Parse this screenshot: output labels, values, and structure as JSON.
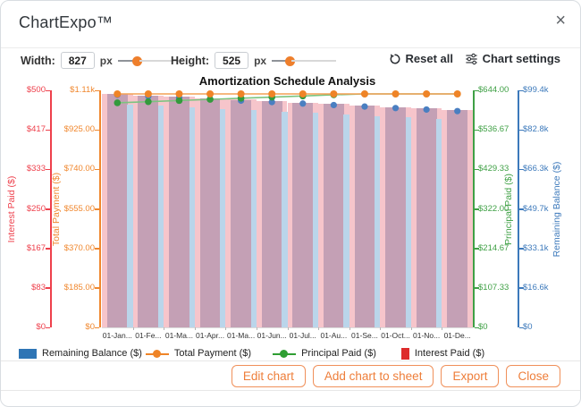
{
  "header": {
    "title": "ChartExpo™",
    "close_label": "×"
  },
  "controls": {
    "width": {
      "label": "Width:",
      "value": "827",
      "unit": "px",
      "slider_pos_pct": 30
    },
    "height": {
      "label": "Height:",
      "value": "525",
      "unit": "px",
      "slider_pos_pct": 27
    },
    "reset_label": "Reset all",
    "chart_settings_label": "Chart settings"
  },
  "chart_data": {
    "type": "bar",
    "title": "Amortization Schedule Analysis",
    "categories": [
      "01-Jan...",
      "01-Fe...",
      "01-Ma...",
      "01-Apr...",
      "01-Ma...",
      "01-Jun...",
      "01-Jul...",
      "01-Au...",
      "01-Se...",
      "01-Oct...",
      "01-No...",
      "01-De..."
    ],
    "series": [
      {
        "name": "Remaining Balance ($)",
        "type": "bar",
        "color": "#3e7bb6",
        "axis_max": 99400,
        "values": [
          99389.79,
          98776.53,
          98160.2,
          97540.79,
          96918.28,
          96292.66,
          95663.91,
          95032.02,
          94396.97,
          93758.74,
          93117.32,
          92472.69
        ]
      },
      {
        "name": "Total Payment ($)",
        "type": "line",
        "color": "#ef8427",
        "axis_max": 1110,
        "values": [
          1110.21,
          1110.21,
          1110.21,
          1110.21,
          1110.21,
          1110.21,
          1110.21,
          1110.21,
          1110.21,
          1110.21,
          1110.21,
          1110.21
        ]
      },
      {
        "name": "Principal Paid ($)",
        "type": "line",
        "color": "#339a3c",
        "axis_max": 644,
        "values": [
          610.21,
          613.26,
          616.33,
          619.41,
          622.51,
          625.62,
          628.75,
          631.89,
          635.05,
          638.23,
          641.42,
          644.63
        ]
      },
      {
        "name": "Interest Paid ($)",
        "type": "bar",
        "color": "#e04343",
        "axis_max": 500,
        "values": [
          500.0,
          496.95,
          493.88,
          490.8,
          487.7,
          484.59,
          481.46,
          478.32,
          475.16,
          471.98,
          468.79,
          465.58
        ]
      }
    ],
    "axes": {
      "interest": {
        "title": "Interest Paid ($)",
        "color": "#ee404c",
        "ticks": [
          "$500",
          "$417",
          "$333",
          "$250",
          "$167",
          "$83",
          "$0"
        ]
      },
      "total_payment": {
        "title": "Total Payment ($)",
        "color": "#f0872e",
        "ticks": [
          "$1.11k",
          "$925.00",
          "$740.00",
          "$555.00",
          "$370.00",
          "$185.00",
          "$0"
        ]
      },
      "principal": {
        "title": "Principal Paid ($)",
        "color": "#3fa045",
        "ticks": [
          "$644.00",
          "$536.67",
          "$429.33",
          "$322.00",
          "$214.67",
          "$107.33",
          "$0"
        ]
      },
      "balance": {
        "title": "Remaining Balance ($)",
        "color": "#3c79bb",
        "ticks": [
          "$99.4k",
          "$82.8k",
          "$66.3k",
          "$49.7k",
          "$33.1k",
          "$16.6k",
          "$0"
        ]
      }
    },
    "legend": [
      {
        "label": "Remaining Balance ($)",
        "marker": "rect",
        "color": "#2e75b5"
      },
      {
        "label": "Total Payment ($)",
        "marker": "line-dot",
        "color": "#ef8427"
      },
      {
        "label": "Principal Paid ($)",
        "marker": "line-dot",
        "color": "#2f9e33"
      },
      {
        "label": "Interest Paid ($)",
        "marker": "rect-v",
        "color": "#dd2b2b"
      }
    ],
    "bar_colors": {
      "interest_fill": "#f6c5cb",
      "overlap_fill": "#c4a0b5",
      "balance_fill": "#bad5ea"
    },
    "ylim_left": [
      0,
      500
    ],
    "ylim_right": [
      0,
      99400
    ],
    "grid": false,
    "legend_position": "bottom"
  },
  "footer": {
    "buttons": [
      "Edit chart",
      "Add chart to sheet",
      "Export",
      "Close"
    ]
  }
}
